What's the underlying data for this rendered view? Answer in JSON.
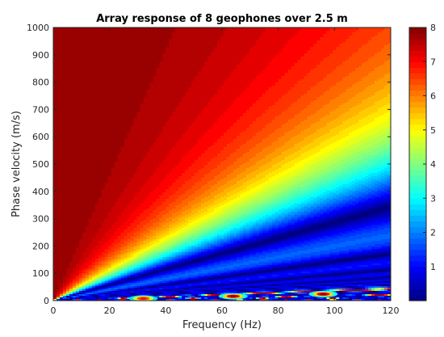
{
  "chart_data": {
    "type": "heatmap",
    "title": "Array response of 8 geophones over 2.5 m",
    "xlabel": "Frequency (Hz)",
    "ylabel": "Phase velocity (m/s)",
    "xlim": [
      0,
      120
    ],
    "ylim": [
      0,
      1000
    ],
    "xticks": [
      "0",
      "20",
      "40",
      "60",
      "80",
      "100",
      "120"
    ],
    "yticks": [
      "0",
      "100",
      "200",
      "300",
      "400",
      "500",
      "600",
      "700",
      "800",
      "900",
      "1000"
    ],
    "colorbar": {
      "range": [
        0,
        8
      ],
      "ticks": [
        "1",
        "2",
        "3",
        "4",
        "5",
        "6",
        "7",
        "8"
      ],
      "colormap": "jet"
    },
    "array": {
      "geophones": 8,
      "length_m": 2.5
    },
    "hotspots": [
      {
        "frequency_hz": 32,
        "phase_velocity_ms": 8,
        "value": 7
      },
      {
        "frequency_hz": 64,
        "phase_velocity_ms": 16,
        "value": 8
      },
      {
        "frequency_hz": 96,
        "phase_velocity_ms": 24,
        "value": 8
      }
    ]
  }
}
